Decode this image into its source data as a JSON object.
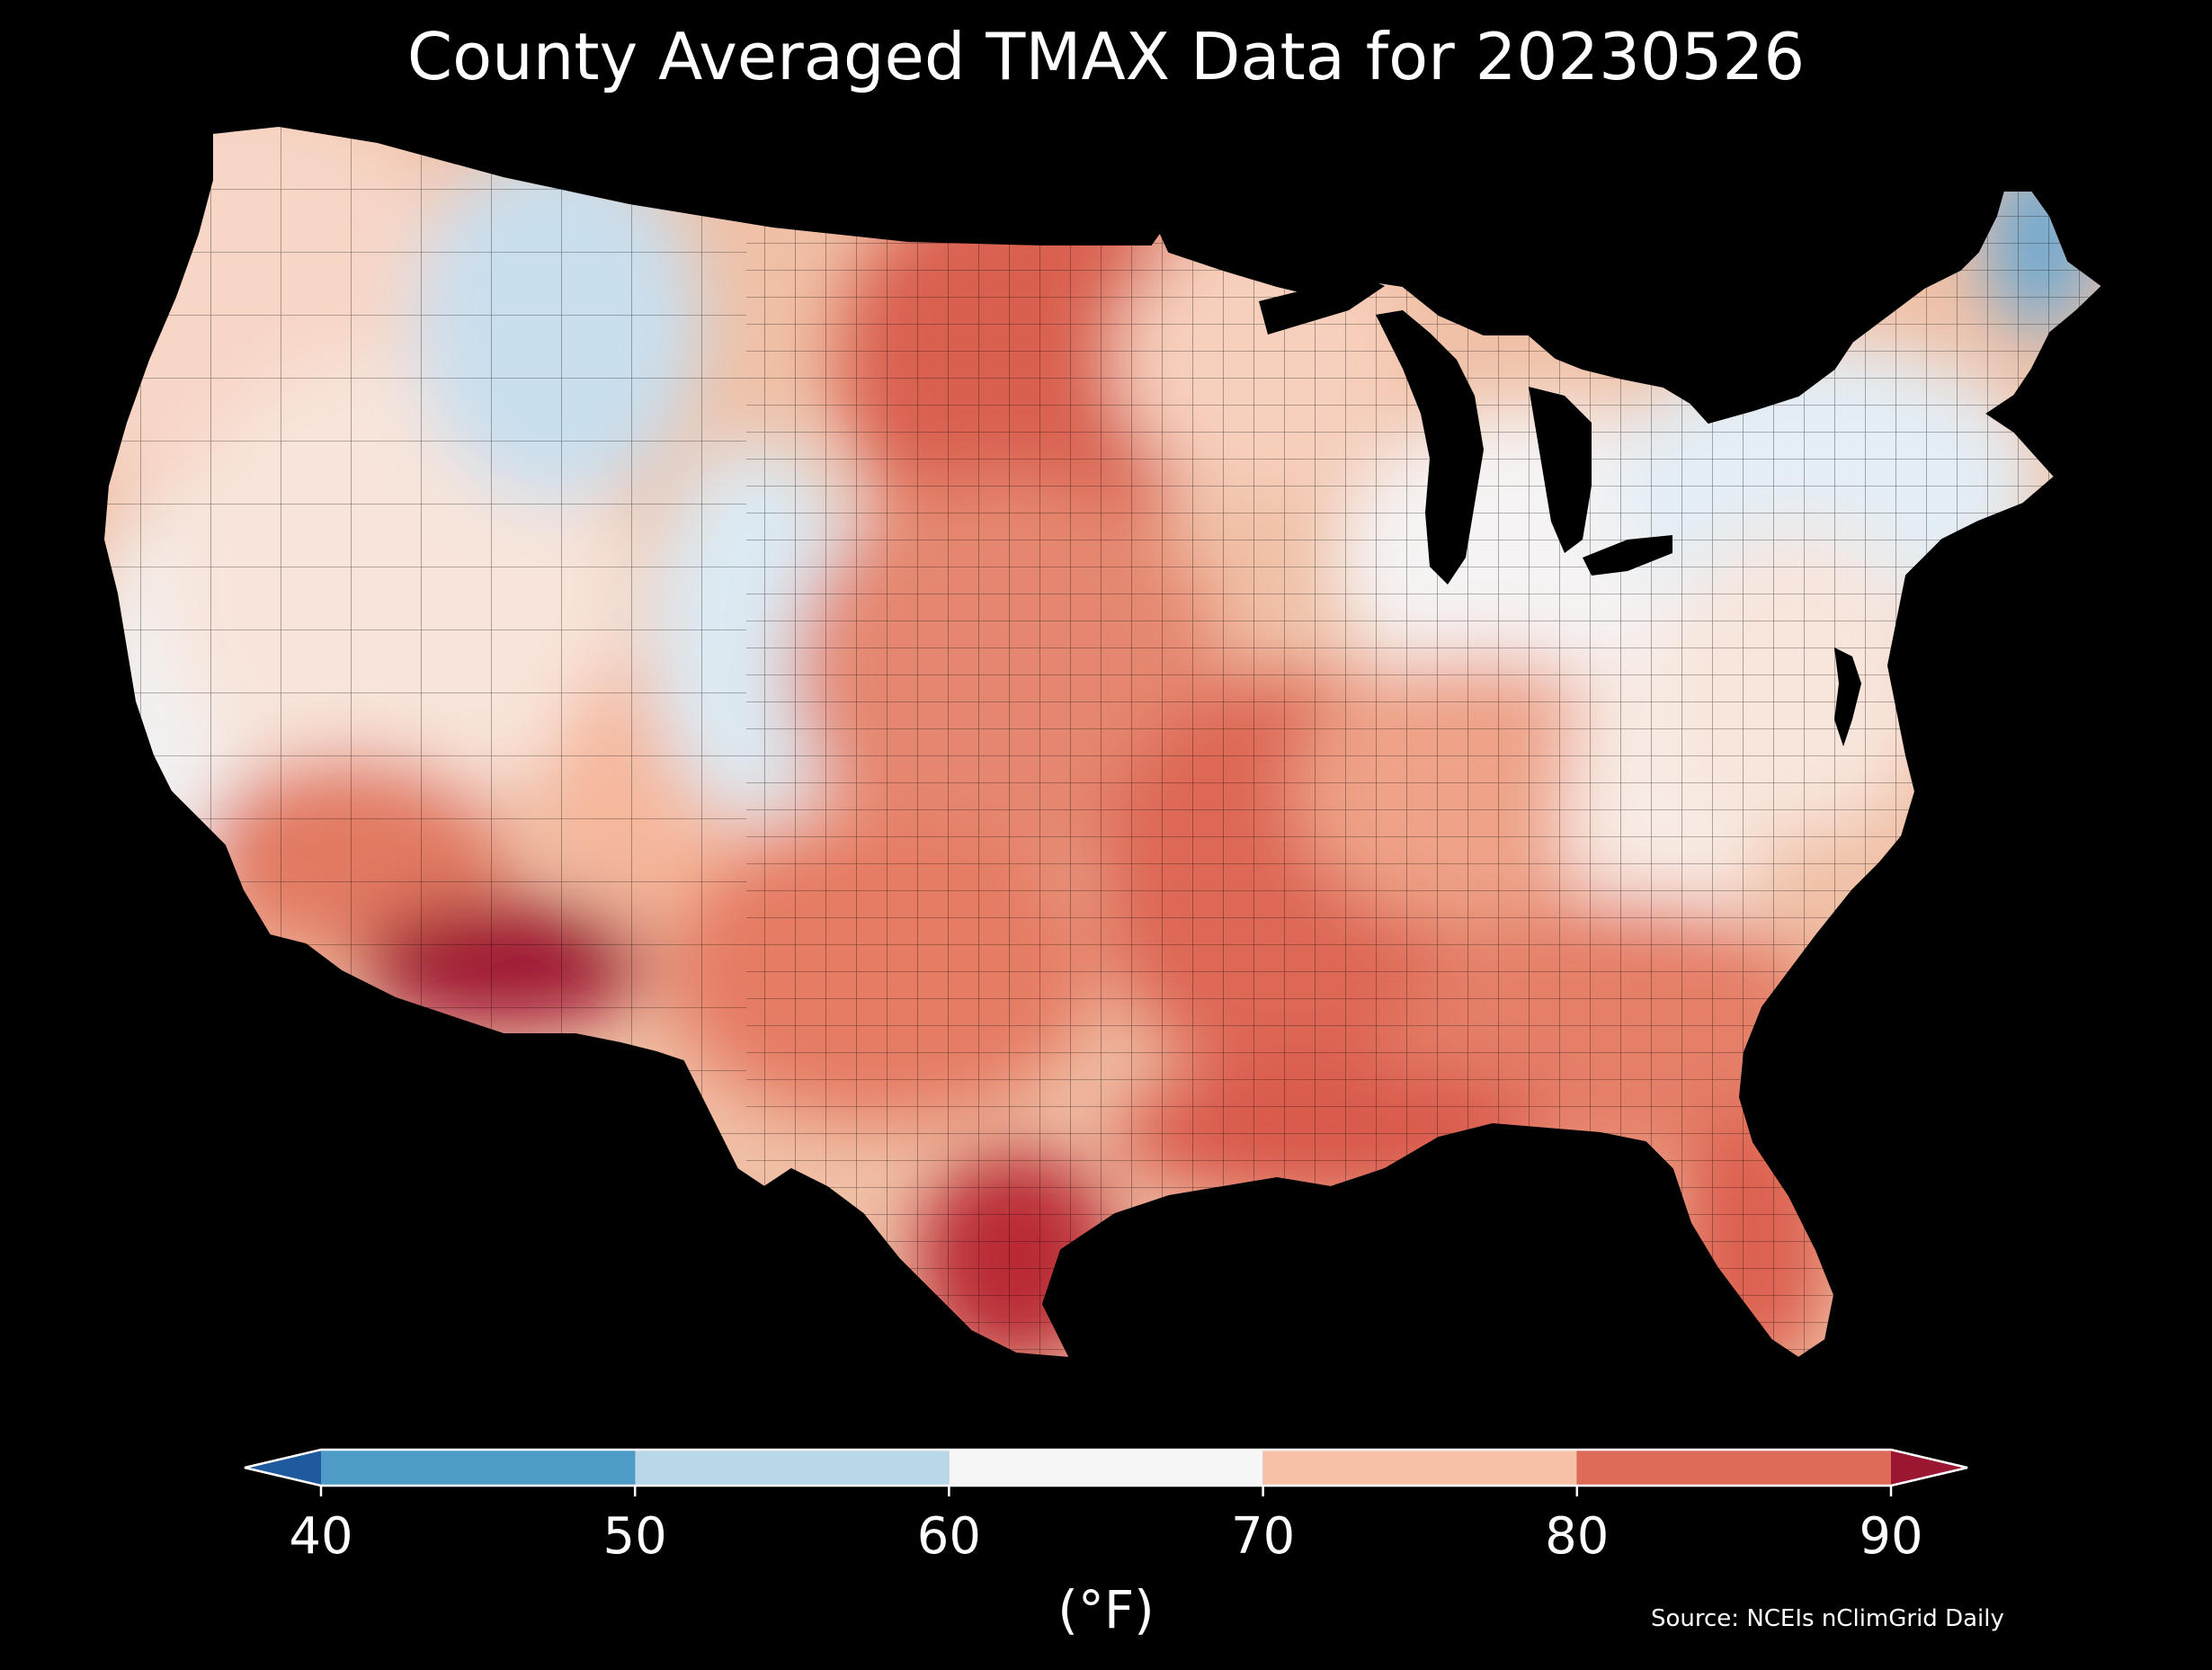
{
  "title": "County Averaged TMAX Data for 20230526",
  "colorbar": {
    "ticks": [
      "40",
      "50",
      "60",
      "70",
      "80",
      "90"
    ],
    "unit": "(°F)",
    "bins": [
      {
        "from": 40,
        "to": 50,
        "color": "#4f9bc8"
      },
      {
        "from": 50,
        "to": 60,
        "color": "#b8d8ea"
      },
      {
        "from": 60,
        "to": 70,
        "color": "#f6f6f6"
      },
      {
        "from": 70,
        "to": 80,
        "color": "#f7c1a6"
      },
      {
        "from": 80,
        "to": 90,
        "color": "#de6a58"
      }
    ],
    "under_color": "#1f5a9e",
    "over_color": "#9b1630"
  },
  "source": "Source: NCEIs nClimGrid Daily",
  "map": {
    "region": "Contiguous United States",
    "variable": "TMAX",
    "regions": [
      {
        "name": "pacific-northwest",
        "color": "#f7d6c6"
      },
      {
        "name": "california-coast",
        "color": "#f2f2f2"
      },
      {
        "name": "great-basin",
        "color": "#f8e4da"
      },
      {
        "name": "northern-rockies",
        "color": "#c9dfee"
      },
      {
        "name": "desert-southwest",
        "color": "#e27a62"
      },
      {
        "name": "low-desert-az",
        "color": "#9e1730"
      },
      {
        "name": "southern-rockies",
        "color": "#f5b79b"
      },
      {
        "name": "colorado-high-country",
        "color": "#dceaf3"
      },
      {
        "name": "northern-plains",
        "color": "#d9604f"
      },
      {
        "name": "central-plains",
        "color": "#e58770"
      },
      {
        "name": "texas",
        "color": "#e57b64"
      },
      {
        "name": "south-texas",
        "color": "#b92a36"
      },
      {
        "name": "upper-midwest",
        "color": "#f7d0bd"
      },
      {
        "name": "great-lakes",
        "color": "#f5f3f3"
      },
      {
        "name": "mid-mississippi",
        "color": "#dd6754"
      },
      {
        "name": "ohio-valley",
        "color": "#eea287"
      },
      {
        "name": "appalachians",
        "color": "#f8ebe4"
      },
      {
        "name": "northeast",
        "color": "#e3eef5"
      },
      {
        "name": "maine-north",
        "color": "#6da9d1"
      },
      {
        "name": "mid-atlantic",
        "color": "#f8e5dc"
      },
      {
        "name": "southeast",
        "color": "#e57f67"
      },
      {
        "name": "florida",
        "color": "#dc6150"
      },
      {
        "name": "gulf-coast",
        "color": "#d95a4c"
      }
    ]
  }
}
